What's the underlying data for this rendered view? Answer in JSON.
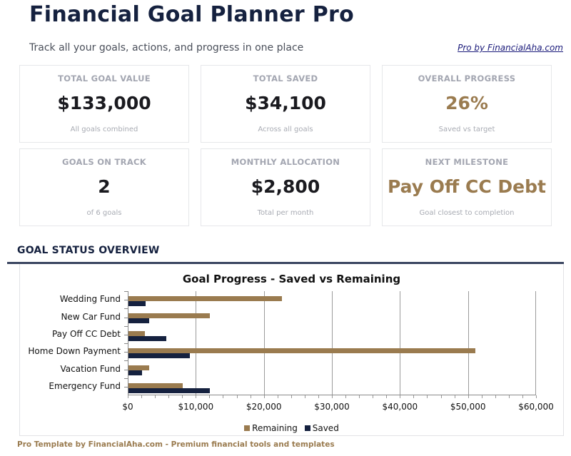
{
  "header": {
    "title": "Financial Goal Planner Pro",
    "subtitle": "Track all your goals, actions, and progress in one place",
    "pro_link": "Pro by FinancialAha.com"
  },
  "cards": [
    {
      "label": "TOTAL GOAL VALUE",
      "value": "$133,000",
      "sub": "All goals combined"
    },
    {
      "label": "TOTAL SAVED",
      "value": "$34,100",
      "sub": "Across all goals"
    },
    {
      "label": "OVERALL PROGRESS",
      "value": "26%",
      "sub": "Saved vs target"
    },
    {
      "label": "GOALS ON TRACK",
      "value": "2",
      "sub": "of 6 goals"
    },
    {
      "label": "MONTHLY ALLOCATION",
      "value": "$2,800",
      "sub": "Total per month"
    },
    {
      "label": "NEXT MILESTONE",
      "value": "Pay Off CC Debt",
      "sub": "Goal closest to completion"
    }
  ],
  "section": {
    "title": "GOAL STATUS OVERVIEW"
  },
  "colors": {
    "navy": "#15213f",
    "gold": "#9a7b4f"
  },
  "chart_data": {
    "type": "bar",
    "orientation": "horizontal",
    "title": "Goal Progress - Saved vs Remaining",
    "categories": [
      "Wedding Fund",
      "New Car Fund",
      "Pay Off CC Debt",
      "Home Down Payment",
      "Vacation Fund",
      "Emergency Fund"
    ],
    "series": [
      {
        "name": "Remaining",
        "color": "#9a7b4f",
        "values": [
          22500,
          12000,
          2400,
          51000,
          3000,
          8000
        ]
      },
      {
        "name": "Saved",
        "color": "#15213f",
        "values": [
          2500,
          3000,
          5600,
          9000,
          2000,
          12000
        ]
      }
    ],
    "xlim": [
      0,
      60000
    ],
    "xticks": [
      "$0",
      "$10,000",
      "$20,000",
      "$30,000",
      "$40,000",
      "$50,000",
      "$60,000"
    ],
    "grid": true,
    "legend_position": "bottom",
    "xlabel": "",
    "ylabel": ""
  },
  "footer": "Pro Template by FinancialAha.com - Premium financial tools and templates"
}
